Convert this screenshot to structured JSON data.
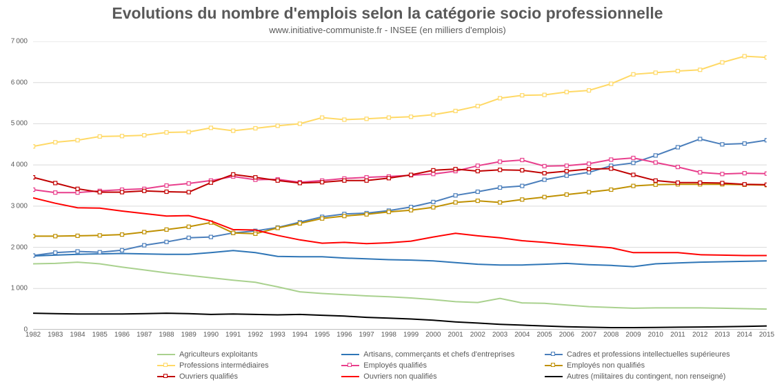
{
  "chart": {
    "type": "line",
    "title": "Evolutions du nombre d'emplois selon la catégorie socio professionnelle",
    "subtitle": "www.initiative-communiste.fr - INSEE (en milliers d'emplois)",
    "title_fontsize": 23,
    "subtitle_fontsize": 13,
    "title_color": "#595959",
    "background_color": "#ffffff",
    "grid_color": "#d9d9d9",
    "axis_color": "#bfbfbf",
    "tick_label_color": "#595959",
    "tick_fontsize": 10,
    "legend_fontsize": 11,
    "xlim": [
      1982,
      2015
    ],
    "ylim": [
      0,
      7000
    ],
    "ytick_step": 1000,
    "xtick_step": 1,
    "line_width": 2,
    "marker_size": 5,
    "years": [
      1982,
      1983,
      1984,
      1985,
      1986,
      1987,
      1988,
      1989,
      1990,
      1991,
      1992,
      1993,
      1994,
      1995,
      1996,
      1997,
      1998,
      1999,
      2000,
      2001,
      2002,
      2003,
      2004,
      2005,
      2006,
      2007,
      2008,
      2009,
      2010,
      2011,
      2012,
      2013,
      2014,
      2015
    ],
    "series": [
      {
        "id": "agriculteurs",
        "label": "Agriculteurs exploitants",
        "color": "#a9d18e",
        "marker": false,
        "values": [
          1600,
          1610,
          1640,
          1600,
          1520,
          1450,
          1380,
          1320,
          1260,
          1200,
          1150,
          1040,
          920,
          880,
          850,
          820,
          800,
          770,
          730,
          680,
          660,
          760,
          650,
          640,
          600,
          560,
          540,
          520,
          530,
          530,
          530,
          520,
          510,
          500
        ]
      },
      {
        "id": "artisans",
        "label": "Artisans, commerçants et chefs d'entreprises",
        "color": "#2e75b6",
        "marker": false,
        "values": [
          1790,
          1810,
          1830,
          1840,
          1850,
          1840,
          1830,
          1830,
          1870,
          1920,
          1870,
          1780,
          1770,
          1770,
          1740,
          1720,
          1700,
          1690,
          1670,
          1630,
          1590,
          1570,
          1570,
          1590,
          1610,
          1580,
          1560,
          1530,
          1600,
          1620,
          1640,
          1650,
          1660,
          1670
        ]
      },
      {
        "id": "cadres",
        "label": "Cadres et professions intellectuelles supérieures",
        "color": "#4a7ebb",
        "marker": "square",
        "values": [
          1800,
          1870,
          1900,
          1880,
          1930,
          2050,
          2130,
          2230,
          2250,
          2350,
          2400,
          2480,
          2610,
          2740,
          2810,
          2830,
          2890,
          2980,
          3100,
          3260,
          3350,
          3450,
          3490,
          3640,
          3740,
          3820,
          3980,
          4050,
          4230,
          4430,
          4630,
          4500,
          4520,
          4600
        ]
      },
      {
        "id": "prof_inter",
        "label": "Professions intermédiaires",
        "color": "#ffd966",
        "marker": "square",
        "values": [
          4450,
          4550,
          4600,
          4690,
          4700,
          4720,
          4790,
          4800,
          4900,
          4830,
          4890,
          4950,
          5000,
          5150,
          5100,
          5120,
          5150,
          5170,
          5220,
          5310,
          5430,
          5620,
          5690,
          5700,
          5770,
          5810,
          5970,
          6200,
          6240,
          6280,
          6310,
          6490,
          6640,
          6610
        ]
      },
      {
        "id": "emp_qual",
        "label": "Employés qualifiés",
        "color": "#e83e8c",
        "marker": "square",
        "values": [
          3400,
          3330,
          3330,
          3370,
          3400,
          3420,
          3500,
          3550,
          3620,
          3720,
          3640,
          3650,
          3580,
          3620,
          3670,
          3700,
          3720,
          3750,
          3780,
          3850,
          3980,
          4080,
          4120,
          3970,
          3980,
          4030,
          4130,
          4170,
          4060,
          3950,
          3820,
          3780,
          3800,
          3790
        ]
      },
      {
        "id": "emp_nonqual",
        "label": "Employés non qualifiés",
        "color": "#bf9000",
        "marker": "square",
        "values": [
          2270,
          2270,
          2280,
          2290,
          2310,
          2370,
          2430,
          2500,
          2600,
          2350,
          2330,
          2470,
          2580,
          2700,
          2760,
          2800,
          2860,
          2900,
          2970,
          3090,
          3130,
          3090,
          3160,
          3220,
          3280,
          3340,
          3400,
          3490,
          3520,
          3530,
          3530,
          3530,
          3520,
          3510
        ]
      },
      {
        "id": "ouv_qual",
        "label": "Ouvriers qualifiés",
        "color": "#c00000",
        "marker": "square",
        "values": [
          3700,
          3560,
          3420,
          3340,
          3340,
          3370,
          3350,
          3340,
          3570,
          3770,
          3700,
          3620,
          3560,
          3580,
          3620,
          3620,
          3680,
          3760,
          3870,
          3900,
          3850,
          3880,
          3870,
          3800,
          3850,
          3900,
          3910,
          3760,
          3620,
          3570,
          3570,
          3560,
          3530,
          3520
        ]
      },
      {
        "id": "ouv_nonqual",
        "label": "Ouvriers non qualifiés",
        "color": "#ff0000",
        "marker": false,
        "values": [
          3200,
          3070,
          2960,
          2950,
          2880,
          2820,
          2760,
          2770,
          2640,
          2430,
          2420,
          2290,
          2180,
          2100,
          2120,
          2090,
          2110,
          2150,
          2250,
          2340,
          2280,
          2230,
          2160,
          2120,
          2070,
          2030,
          1990,
          1870,
          1870,
          1870,
          1820,
          1810,
          1800,
          1800
        ]
      },
      {
        "id": "autres",
        "label": "Autres (militaires du contingent, non renseigné)",
        "color": "#000000",
        "marker": false,
        "values": [
          400,
          390,
          380,
          380,
          380,
          390,
          400,
          390,
          370,
          380,
          370,
          360,
          370,
          350,
          330,
          300,
          280,
          260,
          230,
          190,
          160,
          130,
          110,
          90,
          70,
          60,
          50,
          50,
          55,
          60,
          65,
          70,
          80,
          90
        ]
      }
    ],
    "legend_layout": [
      [
        "agriculteurs",
        "artisans",
        "cadres"
      ],
      [
        "prof_inter",
        "emp_qual",
        "emp_nonqual"
      ],
      [
        "ouv_qual",
        "ouv_nonqual",
        "autres"
      ]
    ]
  }
}
